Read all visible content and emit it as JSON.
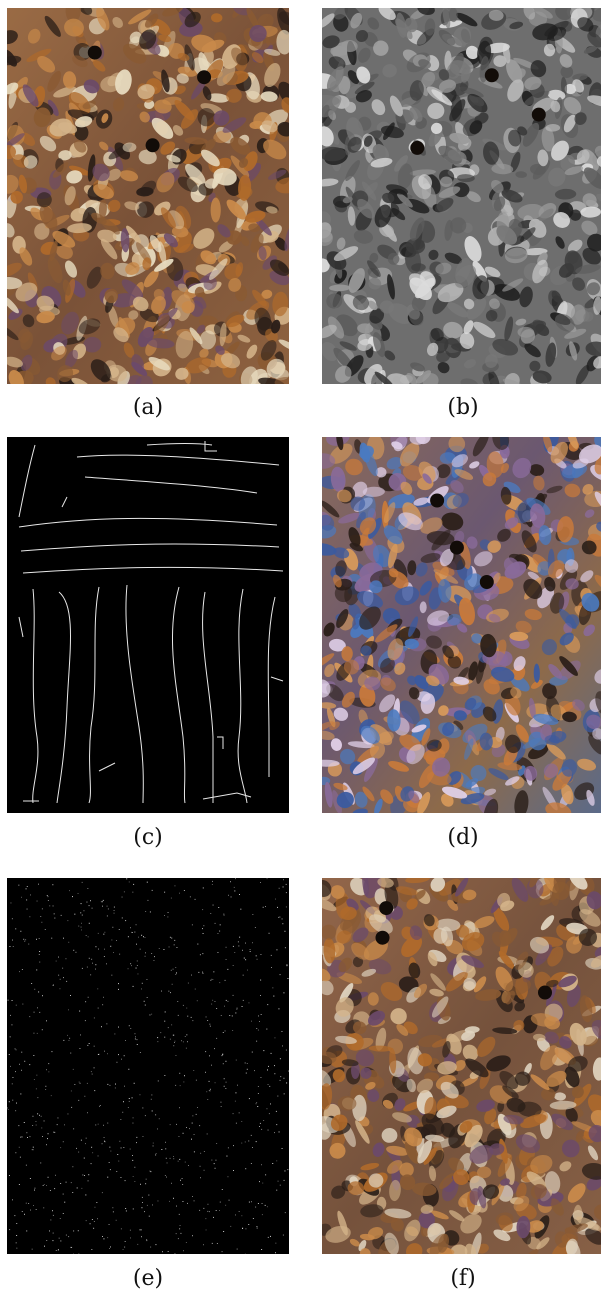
{
  "figure": {
    "panels": [
      {
        "id": "a",
        "caption": "(a)",
        "depicts": "bee-colony-color-photo"
      },
      {
        "id": "b",
        "caption": "(b)",
        "depicts": "bee-colony-grayscale"
      },
      {
        "id": "c",
        "caption": "(c)",
        "depicts": "edge-lines-on-black"
      },
      {
        "id": "d",
        "caption": "(d)",
        "depicts": "bee-colony-enhanced-color"
      },
      {
        "id": "e",
        "caption": "(e)",
        "depicts": "sparse-white-dots-on-black"
      },
      {
        "id": "f",
        "caption": "(f)",
        "depicts": "bee-colony-restored-color"
      }
    ]
  },
  "colors": {
    "bee_amber": "#b06a2a",
    "bee_dark": "#2a1e18",
    "comb_light": "#e8dcc0",
    "black": "#000000",
    "white": "#ffffff"
  }
}
